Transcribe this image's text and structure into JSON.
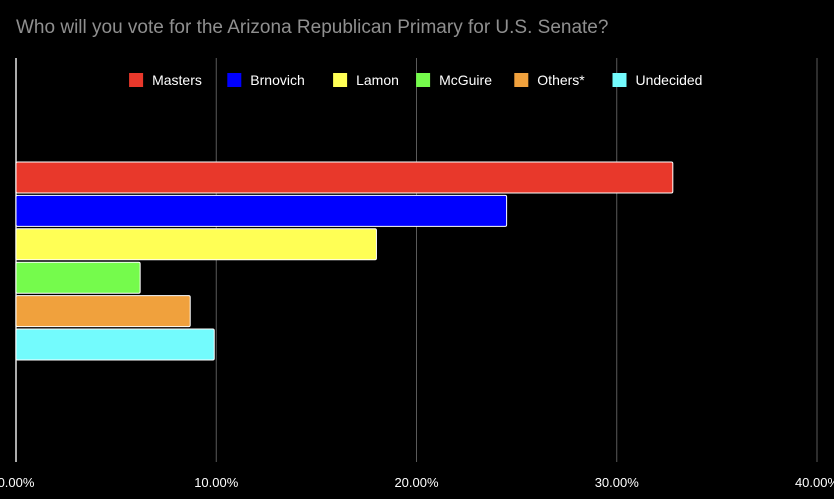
{
  "chart_data": {
    "type": "bar",
    "orientation": "horizontal",
    "title": "Who will you vote for the Arizona Republican Primary for U.S. Senate?",
    "xlabel": "",
    "ylabel": "",
    "xlim": [
      0,
      40
    ],
    "x_ticks": [
      0,
      10,
      20,
      30,
      40
    ],
    "tick_labels": [
      "0.00%",
      "10.00%",
      "20.00%",
      "30.00%",
      "40.00%"
    ],
    "grid": true,
    "legend_position": "top",
    "series": [
      {
        "name": "Masters",
        "values": [
          32.8
        ],
        "color": "#e8382b"
      },
      {
        "name": "Brnovich",
        "values": [
          24.5
        ],
        "color": "#0000ff"
      },
      {
        "name": "Lamon",
        "values": [
          18.0
        ],
        "color": "#ffff55"
      },
      {
        "name": "McGuire",
        "values": [
          6.2
        ],
        "color": "#75fb4c"
      },
      {
        "name": "Others*",
        "values": [
          8.7
        ],
        "color": "#f0a13d"
      },
      {
        "name": "Undecided",
        "values": [
          9.9
        ],
        "color": "#73fbfd"
      }
    ]
  }
}
